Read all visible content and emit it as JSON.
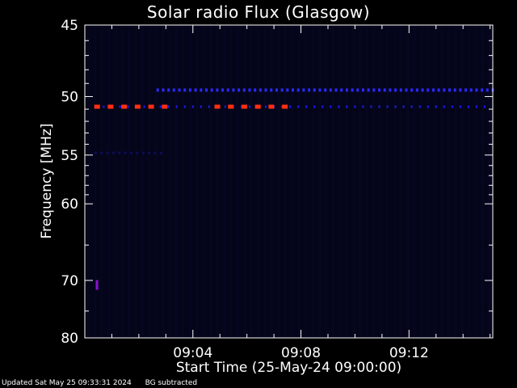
{
  "chart_data": {
    "type": "heatmap",
    "title": "Solar radio Flux (Glasgow)",
    "xlabel": "Start Time (25-May-24 09:00:00)",
    "ylabel": "Frequency [MHz]",
    "x_range_minutes": [
      0,
      15.1
    ],
    "y_range_mhz": [
      45,
      80
    ],
    "x_ticks": [
      {
        "minute": 4,
        "label": "09:04"
      },
      {
        "minute": 8,
        "label": "09:08"
      },
      {
        "minute": 12,
        "label": "09:12"
      }
    ],
    "y_ticks": [
      {
        "mhz": 45,
        "label": "45"
      },
      {
        "mhz": 50,
        "label": "50"
      },
      {
        "mhz": 55,
        "label": "55"
      },
      {
        "mhz": 60,
        "label": "60"
      },
      {
        "mhz": 70,
        "label": "70"
      },
      {
        "mhz": 80,
        "label": "80"
      }
    ],
    "y_minor_ticks_mhz": [
      46,
      47,
      48,
      49,
      51,
      52,
      53,
      54,
      56,
      57,
      58,
      59,
      65,
      75
    ],
    "background_color": "#05051a",
    "features": {
      "interference_line_blue": {
        "mhz": 49.5,
        "color": "#2a2aff",
        "start_minute": 2.7,
        "end_minute": 15.1
      },
      "interference_line_blue_low": {
        "mhz": 50.8,
        "color": "#1a1aff",
        "start_minute": 0.4,
        "end_minute": 15.1
      },
      "interference_bursts_red": {
        "mhz": 50.8,
        "color": "#ff3010",
        "segments": [
          [
            0.35,
            3.0
          ],
          [
            4.8,
            7.5
          ]
        ]
      },
      "dim_band": {
        "mhz": 54.8,
        "color": "#0d0d55",
        "start_minute": 0.4,
        "end_minute": 3.0
      },
      "spot_purple": {
        "mhz": 70.7,
        "minute": 0.45,
        "color": "#8a10d0"
      }
    }
  },
  "footer": {
    "updated": "Updated Sat May 25 09:33:31 2024",
    "note": "BG subtracted"
  }
}
